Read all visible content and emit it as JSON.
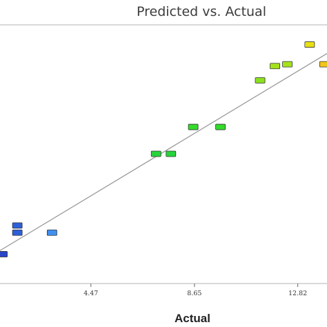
{
  "chart_data": {
    "type": "scatter",
    "title": "Predicted vs. Actual",
    "xlabel": "Actual",
    "ylabel": "",
    "xlim": [
      0.8,
      14.0
    ],
    "ylim": [
      0.6,
      15.0
    ],
    "x_ticks": [
      {
        "value": 4.47,
        "label": "4.47"
      },
      {
        "value": 8.65,
        "label": "8.65"
      },
      {
        "value": 12.82,
        "label": "12.82"
      }
    ],
    "grid": false,
    "legend": "none",
    "reference_line": {
      "from": [
        0.8,
        2.4
      ],
      "to": [
        14.0,
        13.4
      ]
    },
    "series": [
      {
        "values": [
          {
            "x": 0.9,
            "y": 2.2,
            "color": "#2a45c8"
          },
          {
            "x": 1.5,
            "y": 3.4,
            "color": "#2d5fd8"
          },
          {
            "x": 1.5,
            "y": 3.8,
            "color": "#2d5fd8"
          },
          {
            "x": 2.9,
            "y": 3.4,
            "color": "#3f8ff0"
          },
          {
            "x": 7.1,
            "y": 7.8,
            "color": "#27d43a"
          },
          {
            "x": 7.7,
            "y": 7.8,
            "color": "#27d43a"
          },
          {
            "x": 8.6,
            "y": 9.3,
            "color": "#33dc2a"
          },
          {
            "x": 9.7,
            "y": 9.3,
            "color": "#33dc2a"
          },
          {
            "x": 11.3,
            "y": 11.9,
            "color": "#8be01f"
          },
          {
            "x": 11.9,
            "y": 12.7,
            "color": "#a4e21b"
          },
          {
            "x": 12.4,
            "y": 12.8,
            "color": "#a4e21b"
          },
          {
            "x": 13.3,
            "y": 13.9,
            "color": "#e9e10f"
          },
          {
            "x": 13.9,
            "y": 12.8,
            "color": "#f2c61a"
          }
        ]
      }
    ]
  }
}
